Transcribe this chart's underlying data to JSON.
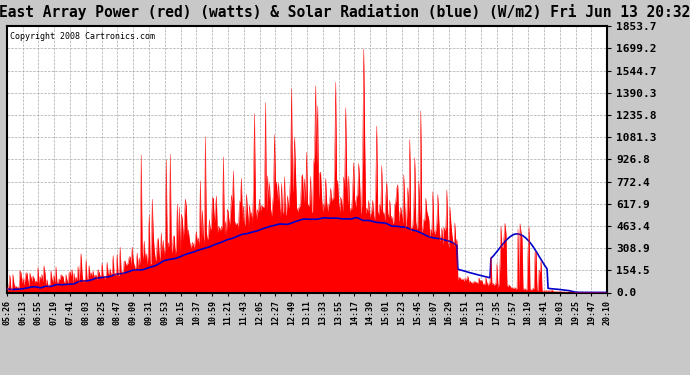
{
  "title": "East Array Power (red) (watts) & Solar Radiation (blue) (W/m2) Fri Jun 13 20:32",
  "copyright": "Copyright 2008 Cartronics.com",
  "yticks": [
    0.0,
    154.5,
    308.9,
    463.4,
    617.9,
    772.4,
    926.8,
    1081.3,
    1235.8,
    1390.3,
    1544.7,
    1699.2,
    1853.7
  ],
  "ymax": 1853.7,
  "ymin": 0.0,
  "bg_color": "#c8c8c8",
  "plot_bg": "#ffffff",
  "red_color": "#ff0000",
  "blue_color": "#0000cc",
  "title_fontsize": 11,
  "tick_fontsize": 8,
  "grid_color": "#aaaaaa",
  "border_color": "#000000",
  "xtick_labels": [
    "05:26",
    "06:13",
    "06:55",
    "07:19",
    "07:41",
    "08:03",
    "08:25",
    "08:47",
    "09:09",
    "09:31",
    "09:53",
    "10:15",
    "10:37",
    "10:59",
    "11:21",
    "11:43",
    "12:05",
    "12:27",
    "12:49",
    "13:11",
    "13:33",
    "13:55",
    "14:17",
    "14:39",
    "15:01",
    "15:23",
    "15:45",
    "16:07",
    "16:29",
    "16:51",
    "17:13",
    "17:35",
    "17:57",
    "18:19",
    "18:41",
    "19:03",
    "19:25",
    "19:47",
    "20:10"
  ]
}
